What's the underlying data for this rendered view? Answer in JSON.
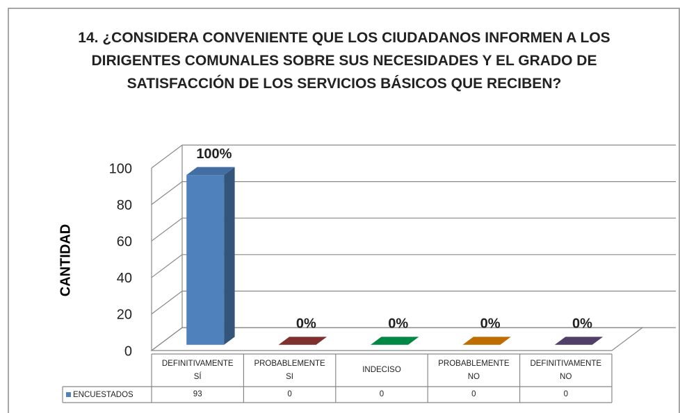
{
  "chart_data": {
    "type": "bar3d",
    "title": "14. ¿CONSIDERA CONVENIENTE QUE LOS CIUDADANOS INFORMEN A LOS DIRIGENTES COMUNALES SOBRE SUS NECESIDADES Y EL GRADO DE SATISFACCIÓN DE LOS SERVICIOS BÁSICOS QUE RECIBEN?",
    "y_label": "CANTIDAD",
    "categories": [
      "DEFINITIVAMENTE SÍ",
      "PROBABLEMENTE SI",
      "INDECISO",
      "PROBABLEMENTE NO",
      "DEFINITIVAMENTE NO"
    ],
    "series": [
      {
        "name": "ENCUESTADOS",
        "color": "#4f81bd",
        "colors": [
          "#4f81bd",
          "#953735",
          "#00a050",
          "#e08000",
          "#604a7b"
        ],
        "values": [
          93,
          0,
          0,
          0,
          0
        ],
        "value_labels": [
          "100%",
          "0%",
          "0%",
          "0%",
          "0%"
        ]
      }
    ],
    "ylim": [
      0,
      100
    ],
    "yticks": [
      0,
      20,
      40,
      60,
      80,
      100
    ],
    "grid": true
  }
}
